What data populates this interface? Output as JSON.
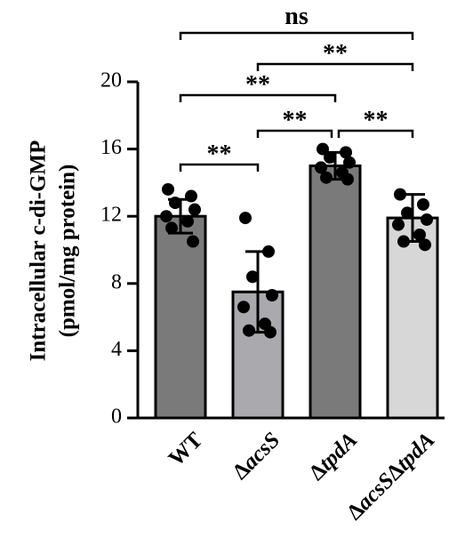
{
  "chart_data": {
    "type": "bar",
    "ylabel_lines": [
      "Intracellular c-di-GMP",
      "(pmol/mg protein)"
    ],
    "ylim": [
      0,
      20
    ],
    "yticks": [
      0,
      4,
      8,
      12,
      16,
      20
    ],
    "categories": [
      {
        "parts": [
          {
            "t": "WT",
            "i": false
          }
        ]
      },
      {
        "parts": [
          {
            "t": "Δ",
            "i": false
          },
          {
            "t": "acsS",
            "i": true
          }
        ]
      },
      {
        "parts": [
          {
            "t": "Δ",
            "i": false
          },
          {
            "t": "tpdA",
            "i": true
          }
        ]
      },
      {
        "parts": [
          {
            "t": "Δ",
            "i": false
          },
          {
            "t": "acsS",
            "i": true
          },
          {
            "t": "Δ",
            "i": false
          },
          {
            "t": "tpdA",
            "i": true
          }
        ]
      }
    ],
    "bars": [
      {
        "mean": 12.0,
        "err": 1.0,
        "color": "#7a7a7a",
        "points": [
          13.6,
          13.2,
          12.8,
          12.4,
          12.0,
          11.7,
          11.3,
          10.5
        ]
      },
      {
        "mean": 7.5,
        "err": 2.4,
        "color": "#a9a9ae",
        "points": [
          11.9,
          9.9,
          8.4,
          7.3,
          6.6,
          5.6,
          5.2,
          5.1
        ]
      },
      {
        "mean": 15.0,
        "err": 0.8,
        "color": "#7a7a7a",
        "points": [
          16.0,
          15.8,
          15.5,
          15.2,
          14.9,
          14.6,
          14.3,
          14.2
        ]
      },
      {
        "mean": 11.9,
        "err": 1.4,
        "color": "#d7d7d7",
        "points": [
          13.3,
          12.7,
          12.2,
          11.8,
          11.5,
          10.9,
          10.5,
          10.3
        ]
      }
    ],
    "comparisons": [
      {
        "from": 0,
        "to": 1,
        "label": "**"
      },
      {
        "from": 1,
        "to": 2,
        "label": "**"
      },
      {
        "from": 2,
        "to": 3,
        "label": "**"
      },
      {
        "from": 0,
        "to": 2,
        "label": "**"
      },
      {
        "from": 1,
        "to": 3,
        "label": "**"
      },
      {
        "from": 0,
        "to": 3,
        "label": "ns"
      }
    ]
  }
}
